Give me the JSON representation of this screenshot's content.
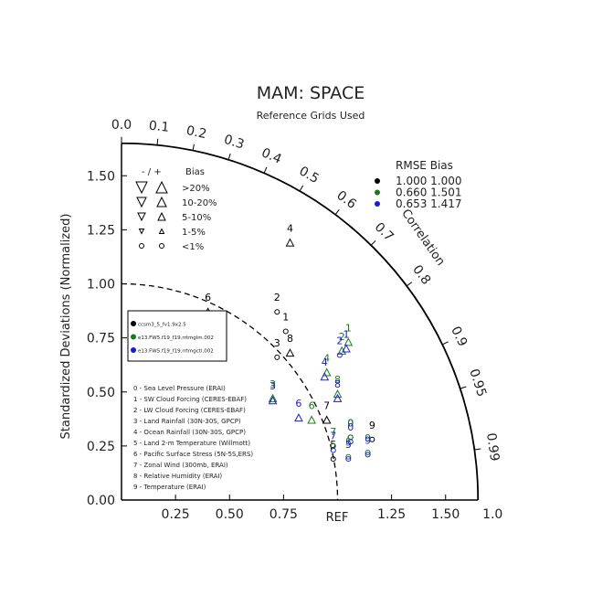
{
  "chart_data": {
    "type": "scatter",
    "subtype": "taylor-diagram",
    "title": "MAM: SPACE",
    "subtitle": "Reference Grids Used",
    "ylabel": "Standardized Deviations (Normalized)",
    "correlation_label": "Correlation",
    "ref_label": "REF",
    "std_range": [
      0,
      1.65
    ],
    "x_ticks": [
      {
        "v": 0.25,
        "t": "0.25"
      },
      {
        "v": 0.5,
        "t": "0.50"
      },
      {
        "v": 0.75,
        "t": "0.75"
      },
      {
        "v": 1.25,
        "t": "1.25"
      },
      {
        "v": 1.5,
        "t": "1.50"
      },
      {
        "v": 1.65,
        "t": "1.0"
      }
    ],
    "y_ticks": [
      {
        "v": 0,
        "t": "0.00"
      },
      {
        "v": 0.25,
        "t": "0.25"
      },
      {
        "v": 0.5,
        "t": "0.50"
      },
      {
        "v": 0.75,
        "t": "0.75"
      },
      {
        "v": 1.0,
        "t": "1.00"
      },
      {
        "v": 1.25,
        "t": "1.25"
      },
      {
        "v": 1.5,
        "t": "1.50"
      }
    ],
    "correlation_ticks": [
      {
        "v": 0.0,
        "t": "0.0"
      },
      {
        "v": 0.1,
        "t": "0.1"
      },
      {
        "v": 0.2,
        "t": "0.2"
      },
      {
        "v": 0.3,
        "t": "0.3"
      },
      {
        "v": 0.4,
        "t": "0.4"
      },
      {
        "v": 0.5,
        "t": "0.5"
      },
      {
        "v": 0.6,
        "t": "0.6"
      },
      {
        "v": 0.7,
        "t": "0.7"
      },
      {
        "v": 0.8,
        "t": "0.8"
      },
      {
        "v": 0.9,
        "t": "0.9"
      },
      {
        "v": 0.95,
        "t": "0.95"
      },
      {
        "v": 0.99,
        "t": "0.99"
      }
    ],
    "bias_legend": {
      "header_sign": "-  /  +",
      "header_label": "Bias",
      "rows": [
        ">20%",
        "10-20%",
        "5-10%",
        "1-5%",
        "<1%"
      ]
    },
    "rmse_legend": {
      "header": "RMSE  Bias",
      "rows": [
        {
          "color": "#000000",
          "text": "1.000 1.000"
        },
        {
          "color": "#1a7a1a",
          "text": "0.660 1.501"
        },
        {
          "color": "#1a1ad4",
          "text": "0.653 1.417"
        }
      ]
    },
    "series": [
      {
        "name": "ccsm3_5_fv1.9x2.5",
        "color": "#000000"
      },
      {
        "name": "e13.FW5.f19_f19.rrtmglm.002",
        "color": "#1a7a1a"
      },
      {
        "name": "e13.FW5.f19_f19.rrtmgctl.002",
        "color": "#1a1ad4"
      }
    ],
    "variables": [
      "0 - Sea Level Pressure (ERAI)",
      "1 - SW Cloud Forcing (CERES-EBAF)",
      "2 - LW Cloud Forcing (CERES-EBAF)",
      "3 - Land Rainfall (30N-30S, GPCP)",
      "4 - Ocean Rainfall (30N-30S, GPCP)",
      "5 - Land 2-m Temperature (Willmott)",
      "6 - Pacific Surface Stress (5N-5S,ERS)",
      "7 - Zonal Wind (300mb, ERAI)",
      "8 - Relative Humidity (ERAI)",
      "9 - Temperature (ERAI)"
    ],
    "points": [
      {
        "s": 0,
        "id": "0",
        "x": 1.06,
        "y": 0.29,
        "m": "o"
      },
      {
        "s": 0,
        "id": "1",
        "x": 0.76,
        "y": 0.78,
        "m": "o"
      },
      {
        "s": 0,
        "id": "2",
        "x": 0.72,
        "y": 0.87,
        "m": "o"
      },
      {
        "s": 0,
        "id": "3",
        "x": 0.72,
        "y": 0.66,
        "m": "o"
      },
      {
        "s": 0,
        "id": "4",
        "x": 0.78,
        "y": 1.19,
        "m": "up"
      },
      {
        "s": 0,
        "id": "5",
        "x": 0.98,
        "y": 0.19,
        "m": "o"
      },
      {
        "s": 0,
        "id": "6",
        "x": 0.4,
        "y": 0.87,
        "m": "up"
      },
      {
        "s": 0,
        "id": "7",
        "x": 0.95,
        "y": 0.37,
        "m": "up"
      },
      {
        "s": 0,
        "id": "8",
        "x": 0.78,
        "y": 0.68,
        "m": "up"
      },
      {
        "s": 0,
        "id": "9",
        "x": 1.16,
        "y": 0.28,
        "m": "o"
      },
      {
        "s": 1,
        "id": "0",
        "x": 1.06,
        "y": 0.29,
        "m": "o"
      },
      {
        "s": 1,
        "id": "1",
        "x": 1.05,
        "y": 0.73,
        "m": "up"
      },
      {
        "s": 1,
        "id": "2",
        "x": 1.02,
        "y": 0.69,
        "m": "up"
      },
      {
        "s": 1,
        "id": "3",
        "x": 0.7,
        "y": 0.47,
        "m": "up"
      },
      {
        "s": 1,
        "id": "4",
        "x": 0.95,
        "y": 0.59,
        "m": "up"
      },
      {
        "s": 1,
        "id": "5",
        "x": 1.05,
        "y": 0.2,
        "m": "o"
      },
      {
        "s": 1,
        "id": "6",
        "x": 0.88,
        "y": 0.37,
        "m": "up"
      },
      {
        "s": 1,
        "id": "7",
        "x": 0.98,
        "y": 0.25,
        "m": "o"
      },
      {
        "s": 1,
        "id": "8",
        "x": 1.0,
        "y": 0.49,
        "m": "up"
      },
      {
        "s": 1,
        "id": "9",
        "x": 1.14,
        "y": 0.22,
        "m": "o"
      },
      {
        "s": 2,
        "id": "0",
        "x": 1.06,
        "y": 0.27,
        "m": "o"
      },
      {
        "s": 2,
        "id": "1",
        "x": 1.04,
        "y": 0.7,
        "m": "up"
      },
      {
        "s": 2,
        "id": "2",
        "x": 1.01,
        "y": 0.67,
        "m": "o"
      },
      {
        "s": 2,
        "id": "3",
        "x": 0.7,
        "y": 0.46,
        "m": "up"
      },
      {
        "s": 2,
        "id": "4",
        "x": 0.94,
        "y": 0.57,
        "m": "up"
      },
      {
        "s": 2,
        "id": "5",
        "x": 1.05,
        "y": 0.19,
        "m": "o"
      },
      {
        "s": 2,
        "id": "6",
        "x": 0.82,
        "y": 0.38,
        "m": "up"
      },
      {
        "s": 2,
        "id": "7",
        "x": 0.98,
        "y": 0.23,
        "m": "o"
      },
      {
        "s": 2,
        "id": "8",
        "x": 1.0,
        "y": 0.47,
        "m": "up"
      },
      {
        "s": 2,
        "id": "9",
        "x": 1.14,
        "y": 0.21,
        "m": "o"
      }
    ]
  }
}
